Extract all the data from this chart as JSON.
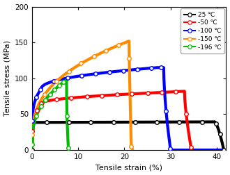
{
  "xlabel": "Tensile strain (%)",
  "ylabel": "Tensile stress (MPa)",
  "xlim": [
    0,
    42
  ],
  "ylim": [
    0,
    200
  ],
  "xticks": [
    0,
    10,
    20,
    30,
    40
  ],
  "yticks": [
    0,
    50,
    100,
    150,
    200
  ],
  "legend_labels": [
    "25 ℃",
    "-50 ℃",
    "-100 ℃",
    "-150 ℃",
    "-196 ℃"
  ],
  "colors": [
    "#000000",
    "#ff0000",
    "#0000ff",
    "#ff8c00",
    "#00bb00"
  ],
  "background_color": "#ffffff",
  "linewidth": 3.0,
  "marker_size": 4.0
}
